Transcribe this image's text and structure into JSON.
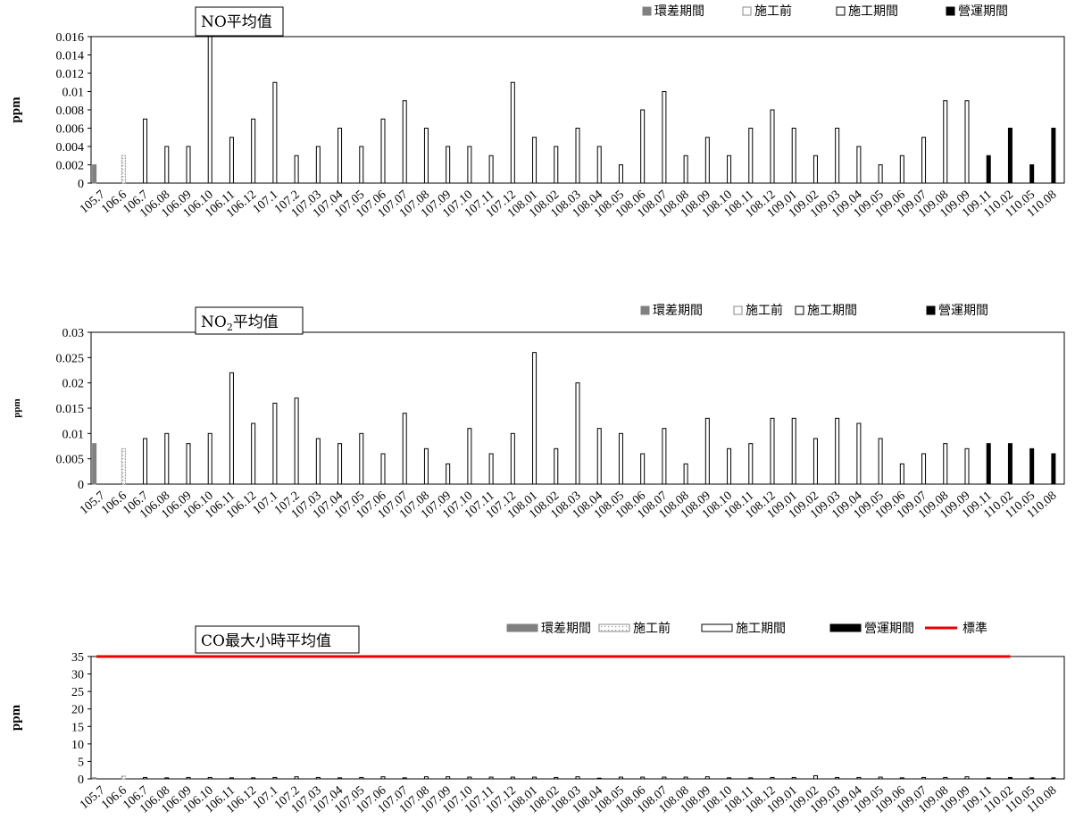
{
  "legend_labels": [
    "環差期間",
    "施工前",
    "施工期間",
    "營運期間"
  ],
  "chart_data": [
    {
      "type": "bar",
      "title": "NO平均值",
      "ylabel": "ppm",
      "ylim": [
        0,
        0.016
      ],
      "yticks": [
        "0",
        "0.002",
        "0.004",
        "0.006",
        "0.008",
        "0.01",
        "0.012",
        "0.014",
        "0.016"
      ],
      "categories": [
        "105.7",
        "106.6",
        "106.7",
        "106.08",
        "106.09",
        "106.10",
        "106.11",
        "106.12",
        "107.1",
        "107.2",
        "107.03",
        "107.04",
        "107.05",
        "107.06",
        "107.07",
        "107.08",
        "107.09",
        "107.10",
        "107.11",
        "107.12",
        "108.01",
        "108.02",
        "108.03",
        "108.04",
        "108.05",
        "108.06",
        "108.07",
        "108.08",
        "108.09",
        "108.10",
        "108.11",
        "108.12",
        "109.01",
        "109.02",
        "109.03",
        "109.04",
        "109.05",
        "109.06",
        "109.07",
        "109.08",
        "109.09",
        "109.11",
        "110.02",
        "110.05",
        "110.08"
      ],
      "values": [
        0.002,
        0.003,
        0.007,
        0.004,
        0.004,
        0.016,
        0.005,
        0.007,
        0.011,
        0.003,
        0.004,
        0.006,
        0.004,
        0.007,
        0.009,
        0.006,
        0.004,
        0.004,
        0.003,
        0.011,
        0.005,
        0.004,
        0.006,
        0.004,
        0.002,
        0.008,
        0.01,
        0.003,
        0.005,
        0.003,
        0.006,
        0.008,
        0.006,
        0.003,
        0.006,
        0.004,
        0.002,
        0.003,
        0.005,
        0.009,
        0.009,
        0.003,
        0.006,
        0.002,
        0.006
      ],
      "periods": [
        0,
        1,
        2,
        2,
        2,
        2,
        2,
        2,
        2,
        2,
        2,
        2,
        2,
        2,
        2,
        2,
        2,
        2,
        2,
        2,
        2,
        2,
        2,
        2,
        2,
        2,
        2,
        2,
        2,
        2,
        2,
        2,
        2,
        2,
        2,
        2,
        2,
        2,
        2,
        2,
        2,
        3,
        3,
        3,
        3
      ]
    },
    {
      "type": "bar",
      "title": "NO2平均值",
      "title_main": "NO",
      "title_sub": "2",
      "title_tail": "平均值",
      "ylabel": "ppm",
      "ylim": [
        0,
        0.03
      ],
      "yticks": [
        "0",
        "0.005",
        "0.01",
        "0.015",
        "0.02",
        "0.025",
        "0.03"
      ],
      "categories": [
        "105.7",
        "106.6",
        "106.7",
        "106.08",
        "106.09",
        "106.10",
        "106.11",
        "106.12",
        "107.1",
        "107.2",
        "107.03",
        "107.04",
        "107.05",
        "107.06",
        "107.07",
        "107.08",
        "107.09",
        "107.10",
        "107.11",
        "107.12",
        "108.01",
        "108.02",
        "108.03",
        "108.04",
        "108.05",
        "108.06",
        "108.07",
        "108.08",
        "108.09",
        "108.10",
        "108.11",
        "108.12",
        "109.01",
        "109.02",
        "109.03",
        "109.04",
        "109.05",
        "109.06",
        "109.07",
        "109.08",
        "109.09",
        "109.11",
        "110.02",
        "110.05",
        "110.08"
      ],
      "values": [
        0.008,
        0.007,
        0.009,
        0.01,
        0.008,
        0.01,
        0.022,
        0.012,
        0.016,
        0.017,
        0.009,
        0.008,
        0.01,
        0.006,
        0.014,
        0.007,
        0.004,
        0.011,
        0.006,
        0.01,
        0.026,
        0.007,
        0.02,
        0.011,
        0.01,
        0.006,
        0.011,
        0.004,
        0.013,
        0.007,
        0.008,
        0.013,
        0.013,
        0.009,
        0.013,
        0.012,
        0.009,
        0.004,
        0.006,
        0.008,
        0.007,
        0.008,
        0.008,
        0.007,
        0.006
      ],
      "periods": [
        0,
        1,
        2,
        2,
        2,
        2,
        2,
        2,
        2,
        2,
        2,
        2,
        2,
        2,
        2,
        2,
        2,
        2,
        2,
        2,
        2,
        2,
        2,
        2,
        2,
        2,
        2,
        2,
        2,
        2,
        2,
        2,
        2,
        2,
        2,
        2,
        2,
        2,
        2,
        2,
        2,
        3,
        3,
        3,
        3
      ]
    },
    {
      "type": "bar",
      "title": "CO最大小時平均值",
      "ylabel": "ppm",
      "ylim": [
        0,
        35
      ],
      "yticks": [
        "0",
        "5",
        "10",
        "15",
        "20",
        "25",
        "30",
        "35"
      ],
      "standard_label": "標準",
      "standard_value": 35,
      "categories": [
        "105.7",
        "106.6",
        "106.7",
        "106.08",
        "106.09",
        "106.10",
        "106.11",
        "106.12",
        "107.1",
        "107.2",
        "107.03",
        "107.04",
        "107.05",
        "107.06",
        "107.07",
        "107.08",
        "107.09",
        "107.10",
        "107.11",
        "107.12",
        "108.01",
        "108.02",
        "108.03",
        "108.04",
        "108.05",
        "108.06",
        "108.07",
        "108.08",
        "108.09",
        "108.10",
        "108.11",
        "108.12",
        "109.01",
        "109.02",
        "109.03",
        "109.04",
        "109.05",
        "109.06",
        "109.07",
        "109.08",
        "109.09",
        "109.11",
        "110.02",
        "110.05",
        "110.08"
      ],
      "values": [
        0.3,
        0.8,
        0.4,
        0.3,
        0.4,
        0.4,
        0.3,
        0.3,
        0.4,
        0.6,
        0.4,
        0.3,
        0.4,
        0.6,
        0.3,
        0.6,
        0.6,
        0.5,
        0.5,
        0.5,
        0.5,
        0.4,
        0.6,
        0.2,
        0.5,
        0.5,
        0.5,
        0.5,
        0.6,
        0.3,
        0.3,
        0.4,
        0.4,
        0.9,
        0.4,
        0.4,
        0.5,
        0.3,
        0.4,
        0.4,
        0.6,
        0.3,
        0.4,
        0.3,
        0.3
      ],
      "periods": [
        0,
        1,
        2,
        2,
        2,
        2,
        2,
        2,
        2,
        2,
        2,
        2,
        2,
        2,
        2,
        2,
        2,
        2,
        2,
        2,
        2,
        2,
        2,
        2,
        2,
        2,
        2,
        2,
        2,
        2,
        2,
        2,
        2,
        2,
        2,
        2,
        2,
        2,
        2,
        2,
        2,
        3,
        3,
        3,
        3
      ]
    }
  ],
  "colors": {
    "env": "#808080",
    "pre": "#a6a6a6",
    "construction": "#ffffff",
    "operation": "#000000",
    "standard": "#ee0000"
  }
}
